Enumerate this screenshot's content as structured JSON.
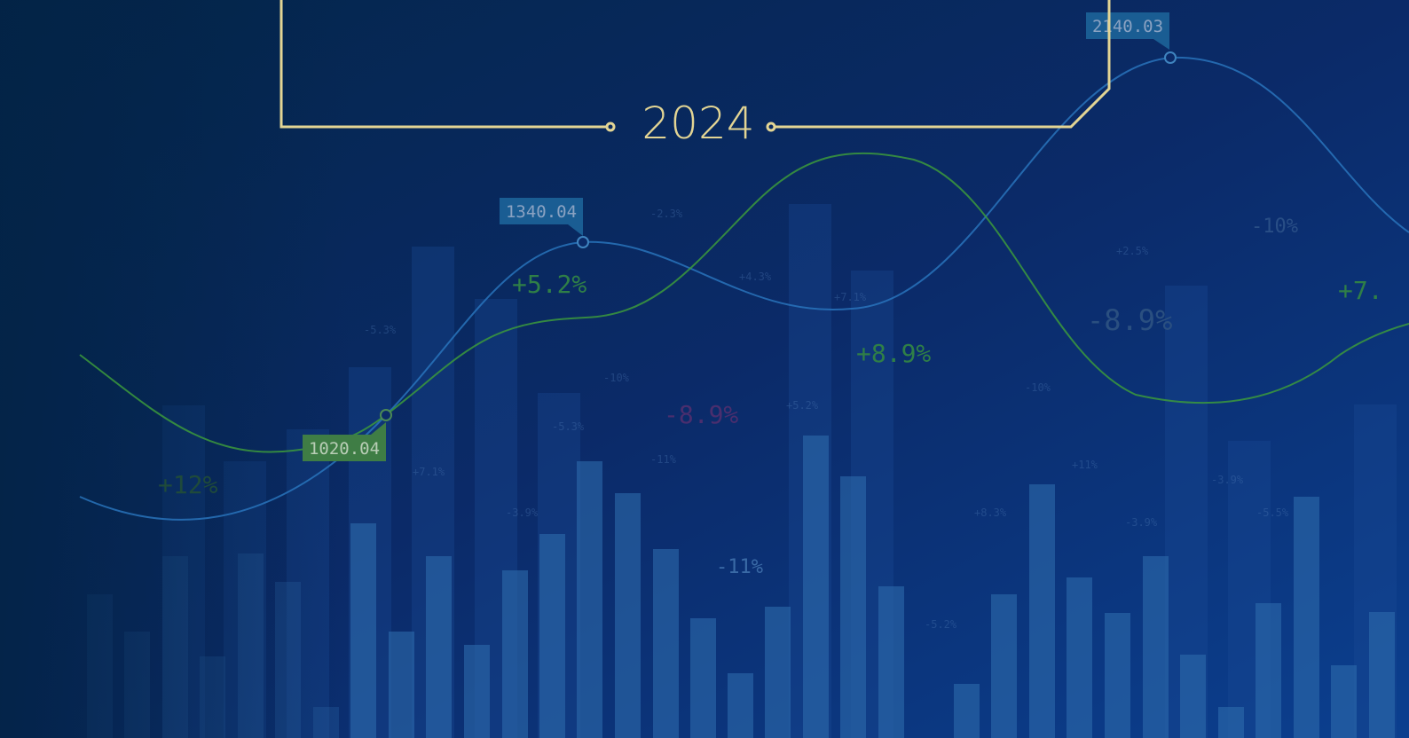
{
  "banner": {
    "year": "2024",
    "callouts": [
      "1340.04",
      "2140.03",
      "1020.04"
    ],
    "large_labels": [
      "+5.2%",
      "+8.9%",
      "-8.9%",
      "-8.9%",
      "+12%",
      "-11%",
      "-10%",
      "+7."
    ],
    "small_labels": [
      "-2.3%",
      "+4.3%",
      "+7.1%",
      "-5.3%",
      "-10%",
      "-5.3%",
      "+5.2%",
      "-11%",
      "-3.9%",
      "+7.1%",
      "+8.3%",
      "+11%",
      "-3.9%",
      "-5.2%",
      "+2.5%",
      "-10%",
      "-3.9%",
      "-5.5%"
    ]
  }
}
